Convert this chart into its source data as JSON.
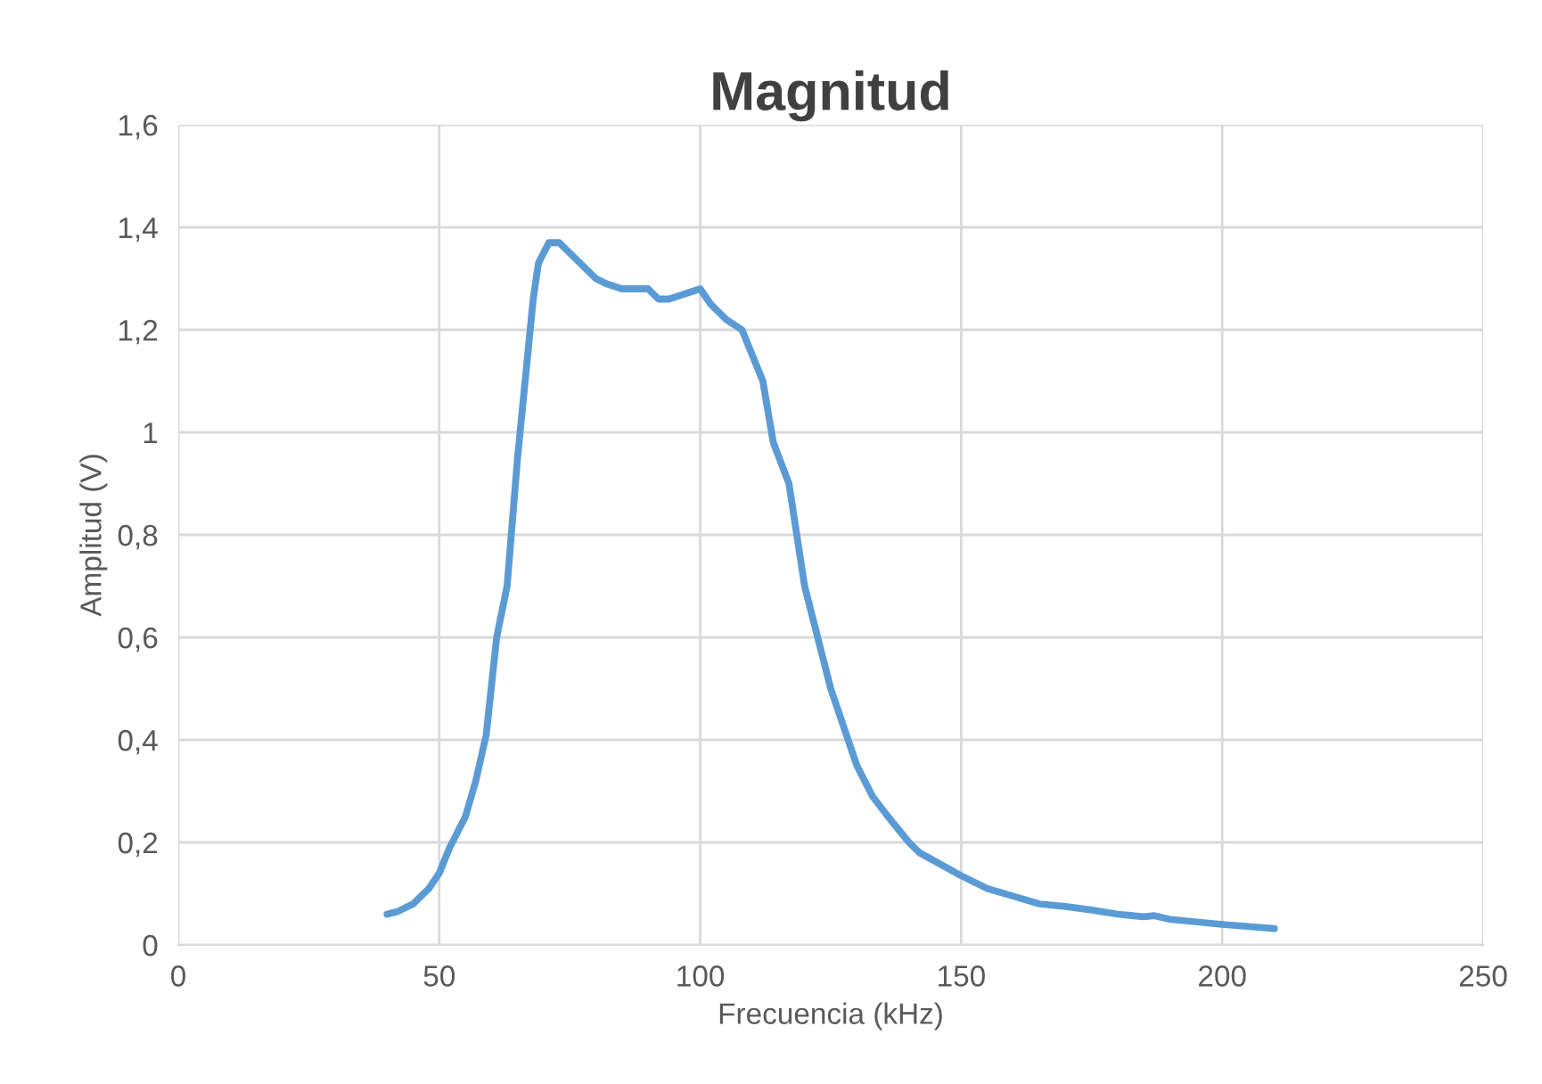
{
  "chart_data": {
    "type": "line",
    "title": "Magnitud",
    "xlabel": "Frecuencia (kHz)",
    "ylabel": "Amplitud (V)",
    "x": [
      40,
      42,
      45,
      48,
      50,
      52,
      55,
      57,
      59,
      61,
      63,
      65,
      68,
      69,
      71,
      73,
      75,
      80,
      82,
      85,
      90,
      92,
      94,
      97,
      100,
      102,
      105,
      108,
      112,
      114,
      117,
      120,
      125,
      130,
      133,
      136,
      140,
      142,
      150,
      155,
      160,
      165,
      170,
      175,
      180,
      185,
      187,
      190,
      200,
      210
    ],
    "series": [
      {
        "color": "#5b9bd5",
        "values": [
          0.06,
          0.065,
          0.08,
          0.11,
          0.14,
          0.19,
          0.25,
          0.32,
          0.41,
          0.6,
          0.7,
          0.95,
          1.26,
          1.33,
          1.37,
          1.37,
          1.35,
          1.3,
          1.29,
          1.28,
          1.28,
          1.26,
          1.26,
          1.27,
          1.28,
          1.25,
          1.22,
          1.2,
          1.1,
          0.98,
          0.9,
          0.7,
          0.5,
          0.35,
          0.29,
          0.25,
          0.2,
          0.18,
          0.135,
          0.11,
          0.095,
          0.08,
          0.075,
          0.068,
          0.06,
          0.055,
          0.057,
          0.05,
          0.04,
          0.032
        ]
      }
    ],
    "xlim": [
      0,
      250
    ],
    "xticks": [
      0,
      50,
      100,
      150,
      200,
      250
    ],
    "ylim": [
      0,
      1.6
    ],
    "yticks": [
      {
        "value": 0,
        "label": "0"
      },
      {
        "value": 0.2,
        "label": "0,2"
      },
      {
        "value": 0.4,
        "label": "0,4"
      },
      {
        "value": 0.6,
        "label": "0,6"
      },
      {
        "value": 0.8,
        "label": "0,8"
      },
      {
        "value": 1,
        "label": "1"
      },
      {
        "value": 1.2,
        "label": "1,2"
      },
      {
        "value": 1.4,
        "label": "1,4"
      },
      {
        "value": 1.6,
        "label": "1,6"
      }
    ],
    "grid": true,
    "marker": "none",
    "line_style": "solid"
  }
}
